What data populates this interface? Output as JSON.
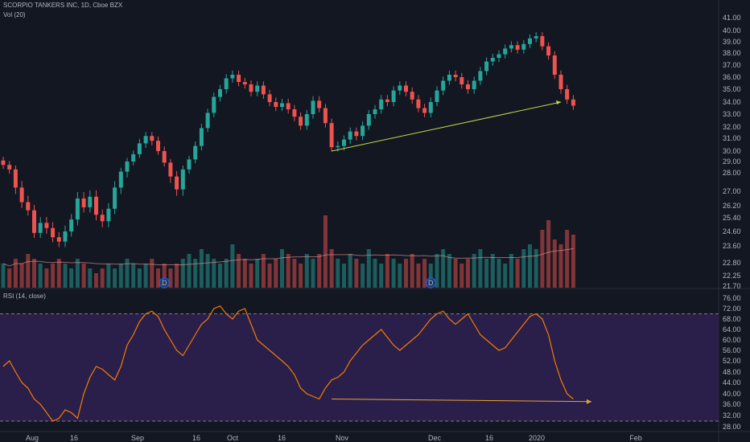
{
  "header": {
    "title": "SCORPIO TANKERS INC, 1D, Cboe BZX",
    "volume_label": "Vol (20)",
    "rsi_label": "RSI (14, close)"
  },
  "colors": {
    "background": "#131722",
    "up": "#26a69a",
    "down": "#ef5350",
    "rsi_line": "#f57c00",
    "rsi_band": "#2a1f4a",
    "trendline_price": "#c5d94a",
    "trendline_rsi": "#f0a030",
    "grid": "#2a2e39",
    "text": "#b2b5be"
  },
  "chart_data": [
    {
      "type": "candlestick",
      "title": "SCORPIO TANKERS INC, 1D, Cboe BZX",
      "y_axis_ticks": [
        "41.00",
        "40.00",
        "39.00",
        "38.00",
        "37.00",
        "36.00",
        "35.00",
        "34.00",
        "33.00",
        "32.00",
        "31.00",
        "30.00",
        "29.00",
        "28.00",
        "27.00",
        "26.20",
        "25.40",
        "24.60",
        "23.60",
        "22.80",
        "22.25",
        "21.70"
      ],
      "x_axis_ticks": [
        "Aug",
        "16",
        "Sep",
        "16",
        "Oct",
        "16",
        "Nov",
        "Dec",
        "16",
        "2020",
        "Feb"
      ],
      "series": [
        {
          "name": "price",
          "close": [
            28.7,
            28.3,
            27.2,
            26.4,
            25.9,
            24.5,
            25.1,
            24.8,
            24.2,
            23.9,
            24.6,
            25.3,
            26.6,
            26.1,
            26.7,
            25.6,
            25.2,
            26.0,
            27.2,
            28.1,
            29.0,
            29.7,
            30.6,
            31.2,
            30.8,
            30.0,
            28.9,
            27.8,
            27.1,
            28.3,
            29.2,
            30.4,
            31.9,
            33.1,
            34.4,
            35.0,
            35.9,
            36.2,
            35.6,
            35.4,
            34.8,
            35.3,
            34.6,
            34.0,
            33.6,
            33.9,
            33.4,
            32.8,
            32.1,
            33.0,
            34.1,
            33.5,
            32.3,
            30.3,
            30.4,
            30.9,
            31.6,
            31.2,
            32.1,
            33.0,
            33.4,
            34.2,
            34.0,
            34.9,
            35.3,
            34.8,
            34.2,
            33.5,
            33.1,
            34.0,
            34.9,
            35.7,
            36.2,
            36.0,
            35.4,
            35.0,
            35.7,
            36.5,
            37.3,
            37.6,
            37.9,
            38.4,
            38.7,
            38.3,
            38.8,
            39.3,
            39.5,
            38.6,
            37.8,
            36.2,
            35.0,
            34.2,
            33.7
          ],
          "volume": [
            5,
            4,
            6,
            5,
            7,
            6,
            5,
            4,
            5,
            6,
            5,
            4,
            6,
            5,
            4,
            3,
            4,
            5,
            4,
            5,
            6,
            5,
            4,
            5,
            6,
            4,
            5,
            4,
            5,
            6,
            7,
            6,
            8,
            7,
            6,
            5,
            6,
            9,
            7,
            6,
            5,
            6,
            7,
            5,
            6,
            8,
            7,
            6,
            5,
            7,
            6,
            7,
            15,
            8,
            6,
            5,
            7,
            6,
            5,
            8,
            6,
            5,
            7,
            6,
            5,
            6,
            7,
            5,
            6,
            5,
            7,
            8,
            7,
            6,
            5,
            6,
            7,
            8,
            6,
            7,
            6,
            5,
            7,
            6,
            8,
            9,
            8,
            12,
            14,
            10,
            9,
            12,
            11
          ]
        }
      ],
      "annotations": [
        {
          "type": "trendline",
          "panel": "price",
          "from": [
            53,
            30.0
          ],
          "to": [
            90,
            34.0
          ]
        },
        {
          "type": "marker",
          "label": "D",
          "index": 26
        },
        {
          "type": "marker",
          "label": "D",
          "index": 69
        }
      ]
    },
    {
      "type": "line",
      "title": "RSI (14, close)",
      "y_axis_ticks": [
        "76.00",
        "72.00",
        "68.00",
        "64.00",
        "60.00",
        "56.00",
        "52.00",
        "48.00",
        "44.00",
        "40.00",
        "36.00",
        "32.00",
        "28.00"
      ],
      "ylim": [
        27,
        77
      ],
      "band": [
        30,
        70
      ],
      "series": [
        {
          "name": "RSI",
          "values": [
            50,
            52,
            48,
            44,
            42,
            38,
            36,
            33,
            30,
            31,
            34,
            33,
            31,
            40,
            46,
            50,
            49,
            47,
            45,
            50,
            58,
            62,
            67,
            70,
            71,
            69,
            64,
            60,
            56,
            54,
            58,
            62,
            66,
            68,
            72,
            73,
            70,
            68,
            71,
            72,
            66,
            60,
            58,
            56,
            54,
            52,
            50,
            47,
            42,
            40,
            39,
            38,
            42,
            45,
            46,
            48,
            52,
            55,
            58,
            60,
            62,
            64,
            61,
            58,
            56,
            58,
            60,
            62,
            65,
            68,
            70,
            71,
            68,
            66,
            68,
            70,
            66,
            62,
            60,
            58,
            56,
            57,
            60,
            63,
            66,
            69,
            70,
            68,
            62,
            52,
            45,
            40,
            38
          ]
        }
      ],
      "annotations": [
        {
          "type": "trendline",
          "panel": "rsi",
          "from": [
            53,
            38.0
          ],
          "to": [
            90,
            37.0
          ]
        }
      ]
    }
  ]
}
